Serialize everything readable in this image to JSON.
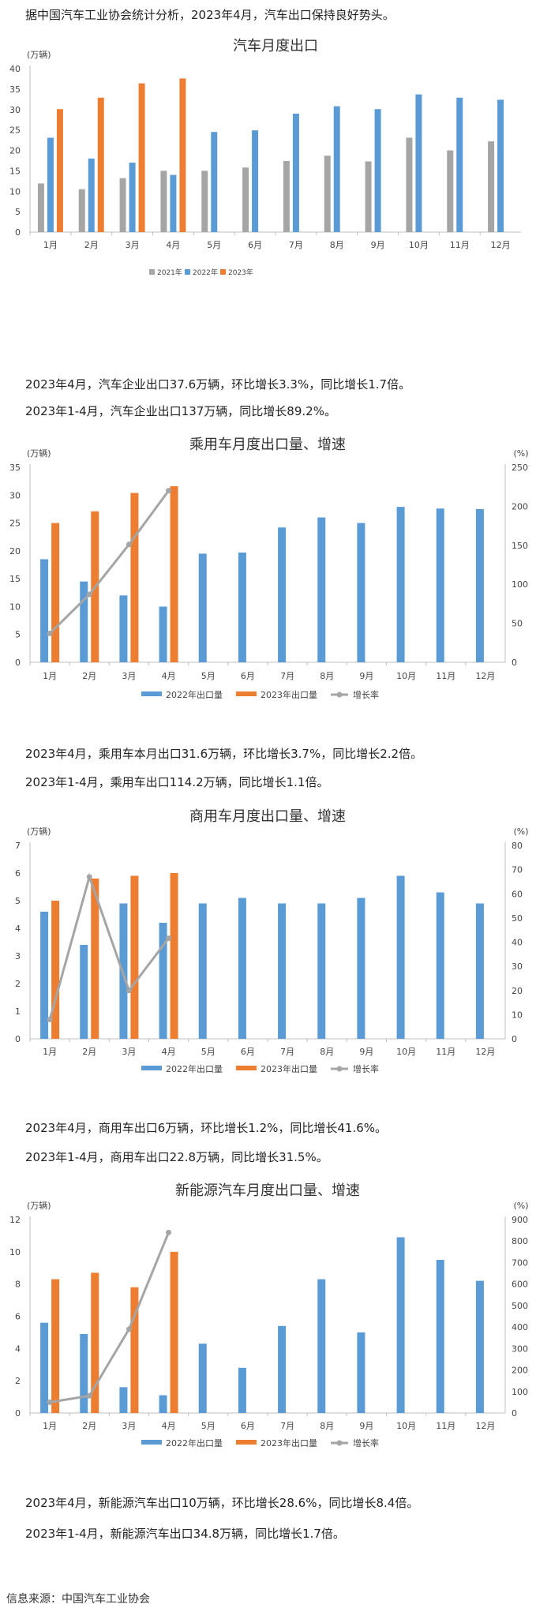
{
  "intro": "据中国汽车工业协会统计分析，2023年4月，汽车出口保持良好势头。",
  "section1": {
    "line1": "2023年4月，汽车企业出口37.6万辆，环比增长3.3%，同比增长1.7倍。",
    "line2": "2023年1-4月，汽车企业出口137万辆，同比增长89.2%。"
  },
  "section2": {
    "line1": "2023年4月，乘用车本月出口31.6万辆，环比增长3.7%，同比增长2.2倍。",
    "line2": "2023年1-4月，乘用车出口114.2万辆，同比增长1.1倍。"
  },
  "section3": {
    "line1": "2023年4月，商用车出口6万辆，环比增长1.2%，同比增长41.6%。",
    "line2": "2023年1-4月，商用车出口22.8万辆，同比增长31.5%。"
  },
  "section4": {
    "line1": "2023年4月，新能源汽车出口10万辆，环比增长28.6%，同比增长8.4倍。",
    "line2": "2023年1-4月，新能源汽车出口34.8万辆，同比增长1.7倍。"
  },
  "source": "信息来源：中国汽车工业协会",
  "colors": {
    "2021": "#a5a5a5",
    "2022": "#5b9bd5",
    "2023": "#ed7d31",
    "growth": "#a5a5a5"
  },
  "chart_data": [
    {
      "type": "bar",
      "title": "汽车月度出口",
      "unit_left": "(万辆)",
      "ylim": [
        0,
        40
      ],
      "yticks": [
        0,
        5,
        10,
        15,
        20,
        25,
        30,
        35,
        40
      ],
      "categories": [
        "1月",
        "2月",
        "3月",
        "4月",
        "5月",
        "6月",
        "7月",
        "8月",
        "9月",
        "10月",
        "11月",
        "12月"
      ],
      "series": [
        {
          "name": "2021年",
          "values": [
            11.9,
            10.5,
            13.2,
            15,
            15,
            15.8,
            17.4,
            18.7,
            17.3,
            23.1,
            20,
            22.2
          ]
        },
        {
          "name": "2022年",
          "values": [
            23.1,
            18,
            17,
            14,
            24.5,
            24.9,
            29,
            30.8,
            30.1,
            33.7,
            32.9,
            32.4
          ]
        },
        {
          "name": "2023年",
          "values": [
            30.1,
            32.9,
            36.4,
            37.6,
            null,
            null,
            null,
            null,
            null,
            null,
            null,
            null
          ]
        }
      ],
      "legend": "bottom",
      "grid": false
    },
    {
      "type": "bar",
      "title": "乘用车月度出口量、增速",
      "unit_left": "(万辆)",
      "unit_right": "(%)",
      "ylim": [
        0,
        35
      ],
      "yticks": [
        0,
        5,
        10,
        15,
        20,
        25,
        30,
        35
      ],
      "y2lim": [
        0,
        250
      ],
      "y2ticks": [
        0,
        50,
        100,
        150,
        200,
        250
      ],
      "categories": [
        "1月",
        "2月",
        "3月",
        "4月",
        "5月",
        "6月",
        "7月",
        "8月",
        "9月",
        "10月",
        "11月",
        "12月"
      ],
      "series": [
        {
          "name": "2022年出口量",
          "values": [
            18.5,
            14.5,
            12,
            10,
            19.5,
            19.7,
            24.2,
            26,
            25,
            27.9,
            27.6,
            27.5
          ]
        },
        {
          "name": "2023年出口量",
          "values": [
            25,
            27.1,
            30.4,
            31.6,
            null,
            null,
            null,
            null,
            null,
            null,
            null,
            null
          ]
        },
        {
          "name": "增长率",
          "axis": "right",
          "kind": "line",
          "values": [
            37,
            87,
            151,
            220,
            null,
            null,
            null,
            null,
            null,
            null,
            null,
            null
          ]
        }
      ],
      "legend": "bottom",
      "grid": false
    },
    {
      "type": "bar",
      "title": "商用车月度出口量、增速",
      "unit_left": "(万辆)",
      "unit_right": "(%)",
      "ylim": [
        0,
        7
      ],
      "yticks": [
        0,
        1,
        2,
        3,
        4,
        5,
        6,
        7
      ],
      "y2lim": [
        0,
        80
      ],
      "y2ticks": [
        0,
        10,
        20,
        30,
        40,
        50,
        60,
        70,
        80
      ],
      "categories": [
        "1月",
        "2月",
        "3月",
        "4月",
        "5月",
        "6月",
        "7月",
        "8月",
        "9月",
        "10月",
        "11月",
        "12月"
      ],
      "series": [
        {
          "name": "2022年出口量",
          "values": [
            4.6,
            3.4,
            4.9,
            4.2,
            4.9,
            5.1,
            4.9,
            4.9,
            5.1,
            5.9,
            5.3,
            4.9
          ]
        },
        {
          "name": "2023年出口量",
          "values": [
            5,
            5.8,
            5.9,
            6,
            null,
            null,
            null,
            null,
            null,
            null,
            null,
            null
          ]
        },
        {
          "name": "增长率",
          "axis": "right",
          "kind": "line",
          "values": [
            8,
            67,
            20,
            41.6,
            null,
            null,
            null,
            null,
            null,
            null,
            null,
            null
          ]
        }
      ],
      "legend": "bottom",
      "grid": false
    },
    {
      "type": "bar",
      "title": "新能源汽车月度出口量、增速",
      "unit_left": "(万辆)",
      "unit_right": "(%)",
      "ylim": [
        0,
        12
      ],
      "yticks": [
        0,
        2,
        4,
        6,
        8,
        10,
        12
      ],
      "y2lim": [
        0,
        900
      ],
      "y2ticks": [
        0,
        100,
        200,
        300,
        400,
        500,
        600,
        700,
        800,
        900
      ],
      "categories": [
        "1月",
        "2月",
        "3月",
        "4月",
        "5月",
        "6月",
        "7月",
        "8月",
        "9月",
        "10月",
        "11月",
        "12月"
      ],
      "series": [
        {
          "name": "2022年出口量",
          "values": [
            5.6,
            4.9,
            1.6,
            1.1,
            4.3,
            2.8,
            5.4,
            8.3,
            5,
            10.9,
            9.5,
            8.2
          ]
        },
        {
          "name": "2023年出口量",
          "values": [
            8.3,
            8.7,
            7.8,
            10,
            null,
            null,
            null,
            null,
            null,
            null,
            null,
            null
          ]
        },
        {
          "name": "增长率",
          "axis": "right",
          "kind": "line",
          "values": [
            50,
            80,
            390,
            840,
            null,
            null,
            null,
            null,
            null,
            null,
            null,
            null
          ]
        }
      ],
      "legend": "bottom",
      "grid": false
    }
  ]
}
